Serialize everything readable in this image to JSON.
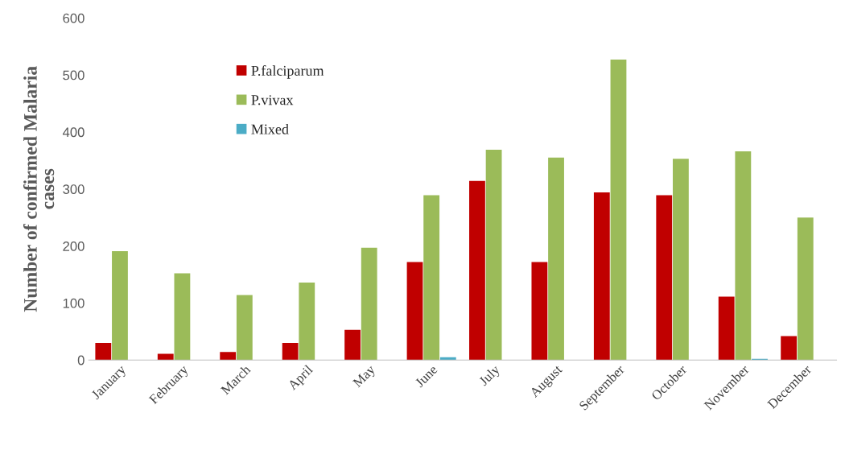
{
  "chart_data": {
    "type": "bar",
    "ylabel": "Number of confirmed Malaria\ncases",
    "categories": [
      "January",
      "February",
      "March",
      "April",
      "May",
      "June",
      "July",
      "August",
      "September",
      "October",
      "November",
      "December"
    ],
    "series": [
      {
        "name": "P.falciparum",
        "color": "#c00000",
        "values": [
          30,
          11,
          14,
          30,
          53,
          172,
          314,
          172,
          294,
          289,
          111,
          42
        ]
      },
      {
        "name": "P.vivax",
        "color": "#9bbb59",
        "values": [
          191,
          152,
          114,
          136,
          197,
          289,
          369,
          355,
          527,
          353,
          366,
          250
        ]
      },
      {
        "name": "Mixed",
        "color": "#4bacc6",
        "values": [
          null,
          null,
          null,
          null,
          null,
          5,
          null,
          null,
          null,
          null,
          2,
          null
        ]
      }
    ],
    "ylim": [
      0,
      600
    ],
    "yticks": [
      0,
      100,
      200,
      300,
      400,
      500,
      600
    ],
    "grid": false,
    "legend": "top left"
  }
}
